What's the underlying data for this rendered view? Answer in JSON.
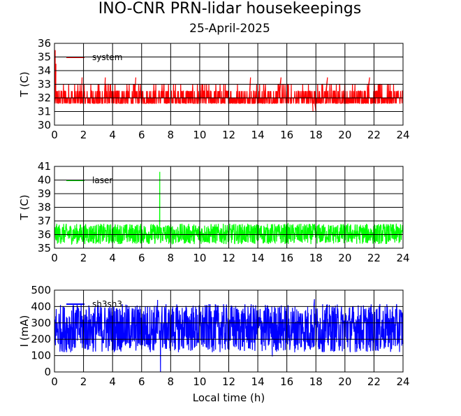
{
  "title": "INO-CNR PRN-lidar housekeepings",
  "subtitle": "25-April-2025",
  "colors": {
    "system": "#ff0000",
    "laser": "#00ff00",
    "current": "#0000ff",
    "axes": "#000000",
    "grid": "#000000"
  },
  "chart_data": [
    {
      "type": "line",
      "xlabel": "",
      "ylabel": "T (C)",
      "xlim": [
        0,
        24
      ],
      "ylim": [
        30,
        36
      ],
      "xticks": [
        "0",
        "2",
        "4",
        "6",
        "8",
        "10",
        "12",
        "14",
        "16",
        "18",
        "20",
        "22",
        "24"
      ],
      "yticks": [
        "30",
        "31",
        "32",
        "33",
        "34",
        "35",
        "36"
      ],
      "grid": true,
      "legend_position": "top-left",
      "series": [
        {
          "name": "system",
          "color": "#ff0000",
          "baseline": 32.0,
          "noise_low": 31.5,
          "noise_high": 33.0,
          "spikes": [
            [
              0.05,
              35.5
            ],
            [
              0.1,
              34.5
            ],
            [
              17.8,
              31.0
            ],
            [
              18.0,
              31.0
            ],
            [
              1.9,
              33.5
            ],
            [
              3.5,
              33.5
            ],
            [
              5.6,
              33.5
            ],
            [
              13.5,
              33.5
            ],
            [
              15.6,
              33.5
            ],
            [
              18.8,
              33.5
            ],
            [
              21.7,
              33.5
            ]
          ]
        }
      ]
    },
    {
      "type": "line",
      "xlabel": "",
      "ylabel": "T (C)",
      "xlim": [
        0,
        24
      ],
      "ylim": [
        35,
        41
      ],
      "xticks": [
        "0",
        "2",
        "4",
        "6",
        "8",
        "10",
        "12",
        "14",
        "16",
        "18",
        "20",
        "22",
        "24"
      ],
      "yticks": [
        "35",
        "36",
        "37",
        "38",
        "39",
        "40",
        "41"
      ],
      "grid": true,
      "legend_position": "top-left",
      "series": [
        {
          "name": "laser",
          "color": "#00ff00",
          "baseline": 36.0,
          "noise_low": 35.3,
          "noise_high": 36.8,
          "spikes": [
            [
              7.25,
              40.6
            ]
          ]
        }
      ]
    },
    {
      "type": "line",
      "xlabel": "Local time (h)",
      "ylabel": "I (mA)",
      "xlim": [
        0,
        24
      ],
      "ylim": [
        0,
        500
      ],
      "xticks": [
        "0",
        "2",
        "4",
        "6",
        "8",
        "10",
        "12",
        "14",
        "16",
        "18",
        "20",
        "22",
        "24"
      ],
      "yticks": [
        "0",
        "100",
        "200",
        "300",
        "400",
        "500"
      ],
      "grid": true,
      "legend_position": "top-left",
      "series": [
        {
          "name": "sh3sh3",
          "color": "#0000ff",
          "baseline": 270,
          "noise_low": 120,
          "noise_high": 415,
          "spikes": [
            [
              7.3,
              0
            ],
            [
              7.1,
              440
            ],
            [
              17.9,
              445
            ],
            [
              15.0,
              95
            ]
          ]
        }
      ]
    }
  ]
}
